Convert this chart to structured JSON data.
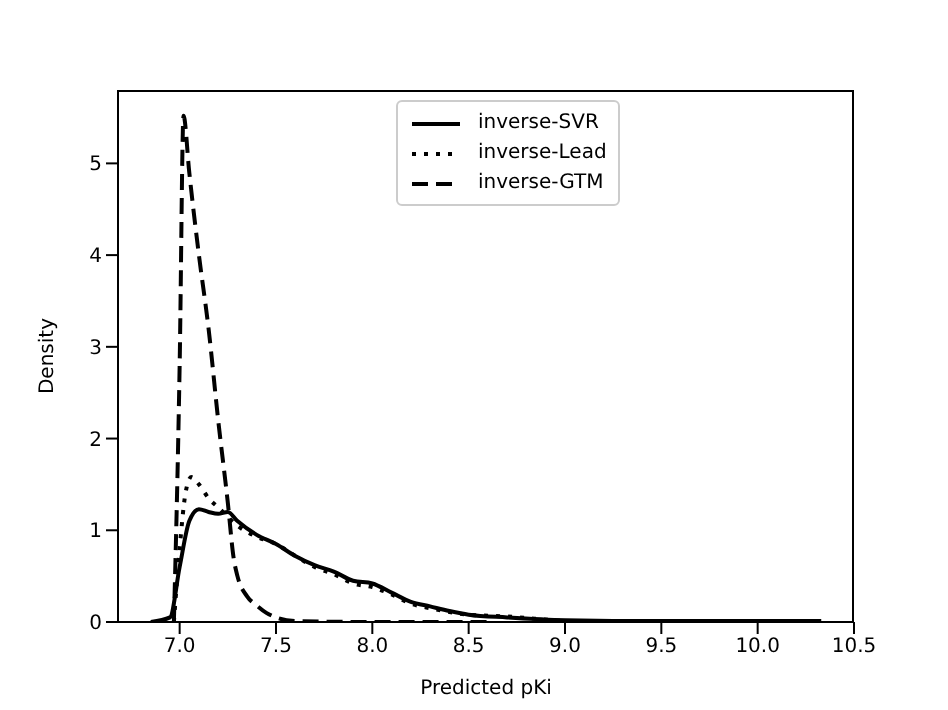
{
  "chart_data": {
    "type": "line",
    "xlabel": "Predicted pKi",
    "ylabel": "Density",
    "xlim": [
      6.68,
      10.5
    ],
    "ylim": [
      0,
      5.8
    ],
    "xticks": [
      {
        "value": 7,
        "label": "7.0"
      },
      {
        "value": 7.5,
        "label": "7.5"
      },
      {
        "value": 8,
        "label": "8.0"
      },
      {
        "value": 8.5,
        "label": "8.5"
      },
      {
        "value": 9,
        "label": "9.0"
      },
      {
        "value": 9.5,
        "label": "9.5"
      },
      {
        "value": 10,
        "label": "10.0"
      },
      {
        "value": 10.5,
        "label": "10.5"
      }
    ],
    "yticks": [
      0,
      1,
      2,
      3,
      4,
      5
    ],
    "grid": false,
    "legend": "top",
    "marker": "none",
    "series": [
      {
        "name": "inverse-SVR",
        "color": "#000000",
        "line_style": "solid",
        "x": [
          6.85,
          6.95,
          7.0,
          7.05,
          7.1,
          7.15,
          7.2,
          7.25,
          7.3,
          7.4,
          7.5,
          7.6,
          7.7,
          7.8,
          7.9,
          8.0,
          8.1,
          8.2,
          8.3,
          8.4,
          8.5,
          8.7,
          9.0,
          9.5,
          10.33
        ],
        "values": [
          0,
          0.05,
          0.6,
          1.1,
          1.23,
          1.2,
          1.18,
          1.2,
          1.1,
          0.95,
          0.85,
          0.72,
          0.62,
          0.55,
          0.45,
          0.42,
          0.32,
          0.22,
          0.17,
          0.12,
          0.08,
          0.05,
          0.02,
          0.01,
          0.01
        ]
      },
      {
        "name": "inverse-Lead",
        "color": "#000000",
        "line_style": "dotted",
        "x": [
          6.97,
          7.0,
          7.03,
          7.06,
          7.1,
          7.15,
          7.2,
          7.3,
          7.4,
          7.5,
          7.6,
          7.7,
          7.8,
          7.9,
          8.0,
          8.1,
          8.2,
          8.3,
          8.5,
          8.7,
          9.0,
          9.1
        ],
        "values": [
          0,
          0.8,
          1.4,
          1.58,
          1.5,
          1.35,
          1.25,
          1.05,
          0.93,
          0.85,
          0.72,
          0.6,
          0.52,
          0.42,
          0.38,
          0.3,
          0.2,
          0.15,
          0.08,
          0.06,
          0.01,
          0
        ]
      },
      {
        "name": "inverse-GTM",
        "color": "#000000",
        "line_style": "dashed",
        "x": [
          6.97,
          7.0,
          7.02,
          7.05,
          7.1,
          7.15,
          7.2,
          7.25,
          7.28,
          7.3,
          7.35,
          7.4,
          7.45,
          7.5,
          7.6,
          8.0,
          8.6
        ],
        "values": [
          0,
          2.8,
          5.52,
          4.9,
          4.0,
          3.2,
          2.2,
          1.3,
          0.7,
          0.5,
          0.28,
          0.18,
          0.1,
          0.05,
          0.01,
          0,
          0
        ]
      }
    ]
  }
}
